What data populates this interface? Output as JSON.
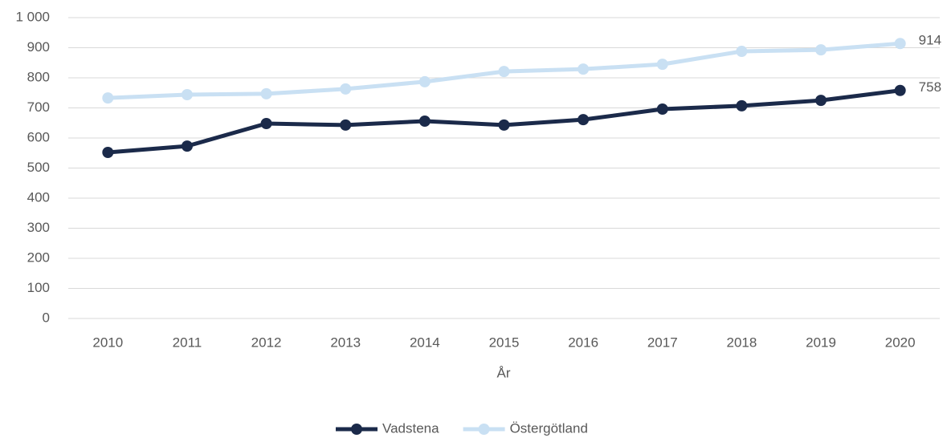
{
  "chart_data": {
    "type": "line",
    "x_label": "År",
    "categories": [
      "2010",
      "2011",
      "2012",
      "2013",
      "2014",
      "2015",
      "2016",
      "2017",
      "2018",
      "2019",
      "2020"
    ],
    "series": [
      {
        "name": "Vadstena",
        "color": "#1b2a4a",
        "values": [
          552,
          573,
          648,
          643,
          656,
          643,
          661,
          696,
          707,
          725,
          758
        ]
      },
      {
        "name": "Östergötland",
        "color": "#c9e0f3",
        "values": [
          733,
          744,
          747,
          763,
          787,
          821,
          829,
          845,
          888,
          893,
          914
        ]
      }
    ],
    "ylim": [
      0,
      1000
    ],
    "yticks": [
      0,
      100,
      200,
      300,
      400,
      500,
      600,
      700,
      800,
      900,
      {
        "value": 1000,
        "label": "1 000"
      }
    ],
    "grid": true,
    "data_labels": "last",
    "legend": "bottom"
  }
}
